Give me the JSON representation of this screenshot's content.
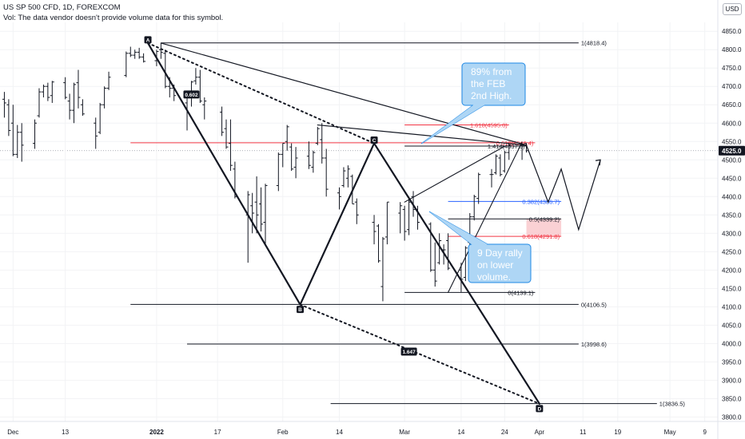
{
  "header": {
    "symbol_line": "US SP 500 CFD, 1D, FOREXCOM",
    "volume_note": "Vol: The data vendor doesn't provide volume data for this symbol.",
    "currency_badge": "USD"
  },
  "colors": {
    "candles": "#131722",
    "fib_black": "#131722",
    "fib_red": "#f23645",
    "fib_blue": "#2962ff",
    "callout_fill": "#aed6f5",
    "callout_border": "#1e88e5",
    "zone_fill": "#f9c9cc",
    "price_tag": "#131722"
  },
  "chart_data": {
    "type": "ohlc",
    "y_axis": {
      "ticks": [
        "4850.0",
        "4800.0",
        "4750.0",
        "4700.0",
        "4650.0",
        "4600.0",
        "4550.0",
        "4500.0",
        "4450.0",
        "4400.0",
        "4350.0",
        "4300.0",
        "4250.0",
        "4200.0",
        "4150.0",
        "4100.0",
        "4050.0",
        "4000.0",
        "3950.0",
        "3900.0",
        "3850.0",
        "3800.0"
      ],
      "range": [
        3790,
        4870
      ],
      "current_price_label": "4525.0",
      "current_price": 4525
    },
    "x_axis": {
      "ticks": [
        "Dec",
        "13",
        "2022",
        "17",
        "Feb",
        "14",
        "Mar",
        "14",
        "24",
        "Apr",
        "11",
        "19",
        "May",
        "9"
      ],
      "bold": [
        "2022"
      ],
      "date_range": [
        "2021-11-28",
        "2022-05-12"
      ]
    },
    "bars": [
      {
        "date": "2021-11-29",
        "o": 4665,
        "h": 4685,
        "l": 4615,
        "c": 4655
      },
      {
        "date": "2021-11-30",
        "o": 4650,
        "h": 4665,
        "l": 4565,
        "c": 4580
      },
      {
        "date": "2021-12-01",
        "o": 4600,
        "h": 4650,
        "l": 4510,
        "c": 4515
      },
      {
        "date": "2021-12-02",
        "o": 4515,
        "h": 4595,
        "l": 4505,
        "c": 4575
      },
      {
        "date": "2021-12-03",
        "o": 4575,
        "h": 4600,
        "l": 4495,
        "c": 4540
      },
      {
        "date": "2021-12-06",
        "o": 4545,
        "h": 4610,
        "l": 4530,
        "c": 4600
      },
      {
        "date": "2021-12-07",
        "o": 4620,
        "h": 4695,
        "l": 4615,
        "c": 4685
      },
      {
        "date": "2021-12-08",
        "o": 4685,
        "h": 4705,
        "l": 4670,
        "c": 4700
      },
      {
        "date": "2021-12-09",
        "o": 4700,
        "h": 4710,
        "l": 4660,
        "c": 4670
      },
      {
        "date": "2021-12-10",
        "o": 4675,
        "h": 4715,
        "l": 4655,
        "c": 4712
      },
      {
        "date": "2021-12-13",
        "o": 4710,
        "h": 4725,
        "l": 4665,
        "c": 4670
      },
      {
        "date": "2021-12-14",
        "o": 4660,
        "h": 4680,
        "l": 4610,
        "c": 4635
      },
      {
        "date": "2021-12-15",
        "o": 4635,
        "h": 4710,
        "l": 4600,
        "c": 4705
      },
      {
        "date": "2021-12-16",
        "o": 4710,
        "h": 4745,
        "l": 4640,
        "c": 4670
      },
      {
        "date": "2021-12-17",
        "o": 4650,
        "h": 4665,
        "l": 4620,
        "c": 4625
      },
      {
        "date": "2021-12-20",
        "o": 4600,
        "h": 4615,
        "l": 4530,
        "c": 4565
      },
      {
        "date": "2021-12-21",
        "o": 4575,
        "h": 4655,
        "l": 4570,
        "c": 4650
      },
      {
        "date": "2021-12-22",
        "o": 4650,
        "h": 4700,
        "l": 4640,
        "c": 4695
      },
      {
        "date": "2021-12-23",
        "o": 4695,
        "h": 4740,
        "l": 4690,
        "c": 4725
      },
      {
        "date": "2021-12-27",
        "o": 4730,
        "h": 4795,
        "l": 4725,
        "c": 4790
      },
      {
        "date": "2021-12-28",
        "o": 4790,
        "h": 4808,
        "l": 4780,
        "c": 4785
      },
      {
        "date": "2021-12-29",
        "o": 4785,
        "h": 4800,
        "l": 4775,
        "c": 4793
      },
      {
        "date": "2021-12-30",
        "o": 4793,
        "h": 4805,
        "l": 4775,
        "c": 4780
      },
      {
        "date": "2021-12-31",
        "o": 4780,
        "h": 4790,
        "l": 4765,
        "c": 4768
      },
      {
        "date": "2022-01-03",
        "o": 4770,
        "h": 4800,
        "l": 4755,
        "c": 4795
      },
      {
        "date": "2022-01-04",
        "o": 4800,
        "h": 4818,
        "l": 4775,
        "c": 4793
      },
      {
        "date": "2022-01-05",
        "o": 4790,
        "h": 4800,
        "l": 4695,
        "c": 4700
      },
      {
        "date": "2022-01-06",
        "o": 4700,
        "h": 4725,
        "l": 4670,
        "c": 4695
      },
      {
        "date": "2022-01-07",
        "o": 4695,
        "h": 4705,
        "l": 4660,
        "c": 4675
      },
      {
        "date": "2022-01-10",
        "o": 4655,
        "h": 4675,
        "l": 4580,
        "c": 4670
      },
      {
        "date": "2022-01-11",
        "o": 4670,
        "h": 4715,
        "l": 4645,
        "c": 4712
      },
      {
        "date": "2022-01-12",
        "o": 4715,
        "h": 4750,
        "l": 4705,
        "c": 4725
      },
      {
        "date": "2022-01-13",
        "o": 4725,
        "h": 4745,
        "l": 4655,
        "c": 4660
      },
      {
        "date": "2022-01-14",
        "o": 4650,
        "h": 4670,
        "l": 4610,
        "c": 4660
      },
      {
        "date": "2022-01-18",
        "o": 4630,
        "h": 4645,
        "l": 4565,
        "c": 4575
      },
      {
        "date": "2022-01-19",
        "o": 4585,
        "h": 4610,
        "l": 4530,
        "c": 4535
      },
      {
        "date": "2022-01-20",
        "o": 4545,
        "h": 4610,
        "l": 4470,
        "c": 4485
      },
      {
        "date": "2022-01-21",
        "o": 4475,
        "h": 4495,
        "l": 4395,
        "c": 4400
      },
      {
        "date": "2022-01-24",
        "o": 4350,
        "h": 4415,
        "l": 4220,
        "c": 4405
      },
      {
        "date": "2022-01-25",
        "o": 4375,
        "h": 4410,
        "l": 4300,
        "c": 4355
      },
      {
        "date": "2022-01-26",
        "o": 4385,
        "h": 4455,
        "l": 4300,
        "c": 4350
      },
      {
        "date": "2022-01-27",
        "o": 4380,
        "h": 4425,
        "l": 4305,
        "c": 4325
      },
      {
        "date": "2022-01-28",
        "o": 4330,
        "h": 4435,
        "l": 4265,
        "c": 4430
      },
      {
        "date": "2022-01-31",
        "o": 4430,
        "h": 4520,
        "l": 4415,
        "c": 4515
      },
      {
        "date": "2022-02-01",
        "o": 4515,
        "h": 4545,
        "l": 4480,
        "c": 4545
      },
      {
        "date": "2022-02-02",
        "o": 4550,
        "h": 4595,
        "l": 4525,
        "c": 4590
      },
      {
        "date": "2022-02-03",
        "o": 4535,
        "h": 4545,
        "l": 4470,
        "c": 4475
      },
      {
        "date": "2022-02-04",
        "o": 4480,
        "h": 4535,
        "l": 4450,
        "c": 4505
      },
      {
        "date": "2022-02-07",
        "o": 4510,
        "h": 4550,
        "l": 4475,
        "c": 4485
      },
      {
        "date": "2022-02-08",
        "o": 4480,
        "h": 4525,
        "l": 4465,
        "c": 4520
      },
      {
        "date": "2022-02-09",
        "o": 4545,
        "h": 4590,
        "l": 4540,
        "c": 4585
      },
      {
        "date": "2022-02-10",
        "o": 4555,
        "h": 4600,
        "l": 4490,
        "c": 4505
      },
      {
        "date": "2022-02-11",
        "o": 4505,
        "h": 4530,
        "l": 4400,
        "c": 4420
      },
      {
        "date": "2022-02-14",
        "o": 4410,
        "h": 4425,
        "l": 4365,
        "c": 4400
      },
      {
        "date": "2022-02-15",
        "o": 4430,
        "h": 4480,
        "l": 4425,
        "c": 4470
      },
      {
        "date": "2022-02-16",
        "o": 4450,
        "h": 4485,
        "l": 4425,
        "c": 4475
      },
      {
        "date": "2022-02-17",
        "o": 4455,
        "h": 4460,
        "l": 4380,
        "c": 4380
      },
      {
        "date": "2022-02-18",
        "o": 4385,
        "h": 4395,
        "l": 4325,
        "c": 4350
      },
      {
        "date": "2022-02-22",
        "o": 4330,
        "h": 4350,
        "l": 4270,
        "c": 4305
      },
      {
        "date": "2022-02-23",
        "o": 4320,
        "h": 4325,
        "l": 4220,
        "c": 4225
      },
      {
        "date": "2022-02-24",
        "o": 4155,
        "h": 4290,
        "l": 4115,
        "c": 4285
      },
      {
        "date": "2022-02-25",
        "o": 4290,
        "h": 4385,
        "l": 4270,
        "c": 4385
      },
      {
        "date": "2022-02-28",
        "o": 4355,
        "h": 4385,
        "l": 4300,
        "c": 4375
      },
      {
        "date": "2022-03-01",
        "o": 4365,
        "h": 4375,
        "l": 4280,
        "c": 4305
      },
      {
        "date": "2022-03-02",
        "o": 4310,
        "h": 4400,
        "l": 4295,
        "c": 4385
      },
      {
        "date": "2022-03-03",
        "o": 4400,
        "h": 4415,
        "l": 4345,
        "c": 4365
      },
      {
        "date": "2022-03-04",
        "o": 4365,
        "h": 4375,
        "l": 4310,
        "c": 4330
      },
      {
        "date": "2022-03-07",
        "o": 4325,
        "h": 4330,
        "l": 4195,
        "c": 4200
      },
      {
        "date": "2022-03-08",
        "o": 4200,
        "h": 4275,
        "l": 4155,
        "c": 4170
      },
      {
        "date": "2022-03-09",
        "o": 4220,
        "h": 4300,
        "l": 4215,
        "c": 4280
      },
      {
        "date": "2022-03-10",
        "o": 4255,
        "h": 4270,
        "l": 4215,
        "c": 4255
      },
      {
        "date": "2022-03-11",
        "o": 4280,
        "h": 4300,
        "l": 4200,
        "c": 4205
      },
      {
        "date": "2022-03-14",
        "o": 4200,
        "h": 4220,
        "l": 4140,
        "c": 4175
      },
      {
        "date": "2022-03-15",
        "o": 4180,
        "h": 4265,
        "l": 4170,
        "c": 4260
      },
      {
        "date": "2022-03-16",
        "o": 4275,
        "h": 4355,
        "l": 4255,
        "c": 4345
      },
      {
        "date": "2022-03-17",
        "o": 4345,
        "h": 4405,
        "l": 4335,
        "c": 4400
      },
      {
        "date": "2022-03-18",
        "o": 4395,
        "h": 4465,
        "l": 4380,
        "c": 4460
      },
      {
        "date": "2022-03-21",
        "o": 4460,
        "h": 4475,
        "l": 4425,
        "c": 4460
      },
      {
        "date": "2022-03-22",
        "o": 4465,
        "h": 4515,
        "l": 4460,
        "c": 4510
      },
      {
        "date": "2022-03-23",
        "o": 4505,
        "h": 4515,
        "l": 4455,
        "c": 4460
      },
      {
        "date": "2022-03-24",
        "o": 4470,
        "h": 4525,
        "l": 4465,
        "c": 4520
      },
      {
        "date": "2022-03-25",
        "o": 4520,
        "h": 4545,
        "l": 4500,
        "c": 4540
      },
      {
        "date": "2022-03-28",
        "o": 4540,
        "h": 4545,
        "l": 4500,
        "c": 4540
      },
      {
        "date": "2022-03-29",
        "o": 4545,
        "h": 4545,
        "l": 4520,
        "c": 4525
      }
    ],
    "fib_levels": [
      {
        "label": "1(4818.4)",
        "price": 4818.4,
        "x0": "2022-01-04",
        "x1": "2022-04-10",
        "color": "fib_black"
      },
      {
        "label": "1.618(4595.0)",
        "price": 4595.0,
        "x0": "2022-03-01",
        "x1": "2022-03-25",
        "color": "fib_red"
      },
      {
        "label": "1.414(4537.5)",
        "price": 4537.5,
        "x0": "2022-03-01",
        "x1": "2022-03-29",
        "color": "fib_black"
      },
      {
        "label": "0.618(4546.4)",
        "price": 4546.4,
        "x0": "2021-12-28",
        "x1": "2022-03-31",
        "color": "fib_red"
      },
      {
        "label": "0.382(4386.7)",
        "price": 4386.7,
        "x0": "2022-03-11",
        "x1": "2022-04-06",
        "color": "fib_blue"
      },
      {
        "label": "0.5(4339.2)",
        "price": 4339.2,
        "x0": "2022-03-11",
        "x1": "2022-04-06",
        "color": "fib_black"
      },
      {
        "label": "0.618(4291.8)",
        "price": 4291.8,
        "x0": "2022-03-11",
        "x1": "2022-04-06",
        "color": "fib_red"
      },
      {
        "label": "0(4139.1)",
        "price": 4139.1,
        "x0": "2022-03-01",
        "x1": "2022-03-31",
        "color": "fib_black"
      },
      {
        "label": "0(4106.5)",
        "price": 4106.5,
        "x0": "2021-12-28",
        "x1": "2022-04-10",
        "color": "fib_black"
      },
      {
        "label": "1(3998.6)",
        "price": 3998.6,
        "x0": "2022-01-10",
        "x1": "2022-04-10",
        "color": "fib_black"
      },
      {
        "label": "1(3836.5)",
        "price": 3836.5,
        "x0": "2022-02-12",
        "x1": "2022-04-28",
        "color": "fib_black"
      }
    ],
    "pattern_points": [
      {
        "label": "A",
        "date": "2022-01-01",
        "price": 4818
      },
      {
        "label": "B",
        "date": "2022-02-05",
        "price": 4106
      },
      {
        "label": "C",
        "date": "2022-02-22",
        "price": 4545
      },
      {
        "label": "D",
        "date": "2022-04-01",
        "price": 3836
      }
    ],
    "ratios": [
      {
        "label": "0.602",
        "date": "2022-01-11",
        "price": 4678
      },
      {
        "label": "1.647",
        "date": "2022-03-02",
        "price": 3978
      }
    ],
    "projection_path": [
      {
        "date": "2022-03-29",
        "price": 4540
      },
      {
        "date": "2022-04-03",
        "price": 4385
      },
      {
        "date": "2022-04-06",
        "price": 4475
      },
      {
        "date": "2022-04-10",
        "price": 4310
      },
      {
        "date": "2022-04-15",
        "price": 4500
      }
    ],
    "callouts": [
      {
        "lines": [
          "89% from",
          "the FEB",
          "2nd High."
        ]
      },
      {
        "lines": [
          "9 Day rally",
          "on lower",
          "volume."
        ]
      }
    ]
  }
}
